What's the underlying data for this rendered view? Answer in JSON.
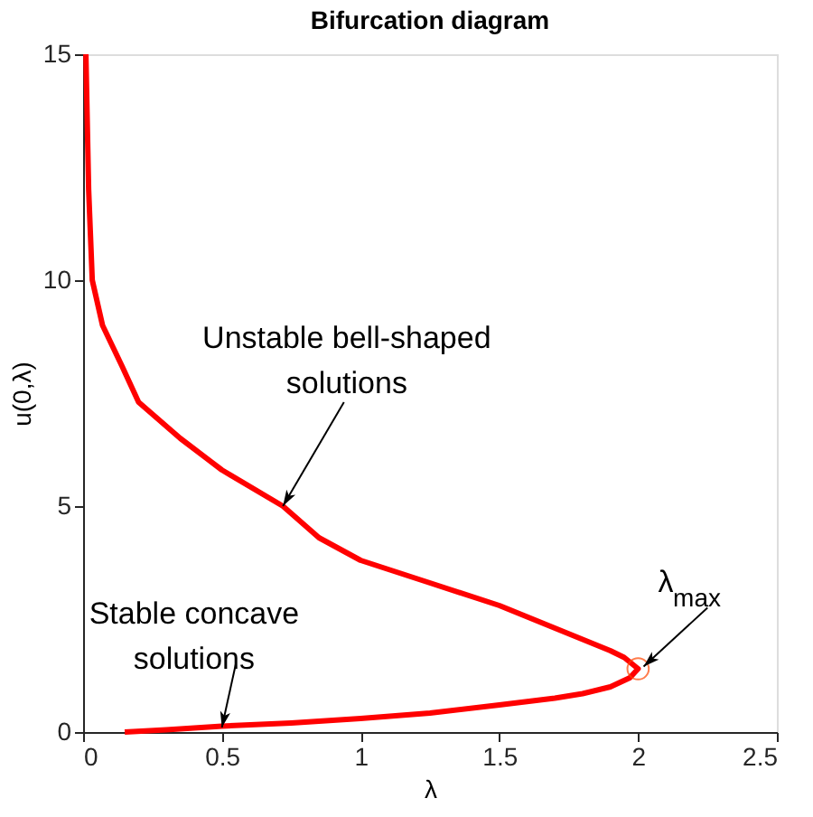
{
  "chart_data": {
    "type": "line",
    "title": "Bifurcation diagram",
    "xlabel": "λ",
    "ylabel": "u(0,λ)",
    "series": [
      {
        "color": "#ff0000",
        "x": [
          0.15,
          0.3,
          0.5,
          0.75,
          1.0,
          1.25,
          1.5,
          1.7,
          1.8,
          1.9,
          1.97,
          2.0,
          1.95,
          1.9,
          1.7,
          1.5,
          1.25,
          1.0,
          0.85,
          0.72,
          0.5,
          0.35,
          0.2,
          0.14,
          0.07,
          0.033,
          0.02,
          0.01
        ],
        "values": [
          0.0,
          0.05,
          0.13,
          0.2,
          0.3,
          0.42,
          0.6,
          0.75,
          0.85,
          1.0,
          1.2,
          1.4,
          1.65,
          1.8,
          2.3,
          2.8,
          3.3,
          3.8,
          4.3,
          5.0,
          5.8,
          6.5,
          7.3,
          8.1,
          9.0,
          10.0,
          12.0,
          15.0
        ]
      },
      {
        "type": "scatter",
        "color": "#ff4500",
        "marker": "circle",
        "x": [
          2.0
        ],
        "values": [
          1.4
        ]
      }
    ],
    "annotations": [
      {
        "text": "Unstable bell-shaped\nsolutions",
        "x": 0.72,
        "y": 5.0
      },
      {
        "text": "Stable concave\nsolutions",
        "x": 0.5,
        "y": 0.1
      },
      {
        "text": "λ$_{max}$",
        "x": 2.02,
        "y": 1.45
      }
    ],
    "xlim": [
      0,
      2.5
    ],
    "xticks": [
      0,
      0.5,
      1,
      1.5,
      2,
      2.5
    ],
    "ylim": [
      0,
      15
    ],
    "yticks": [
      0,
      5,
      10,
      15
    ],
    "grid": false,
    "marker": "none",
    "line_style": "solid"
  }
}
